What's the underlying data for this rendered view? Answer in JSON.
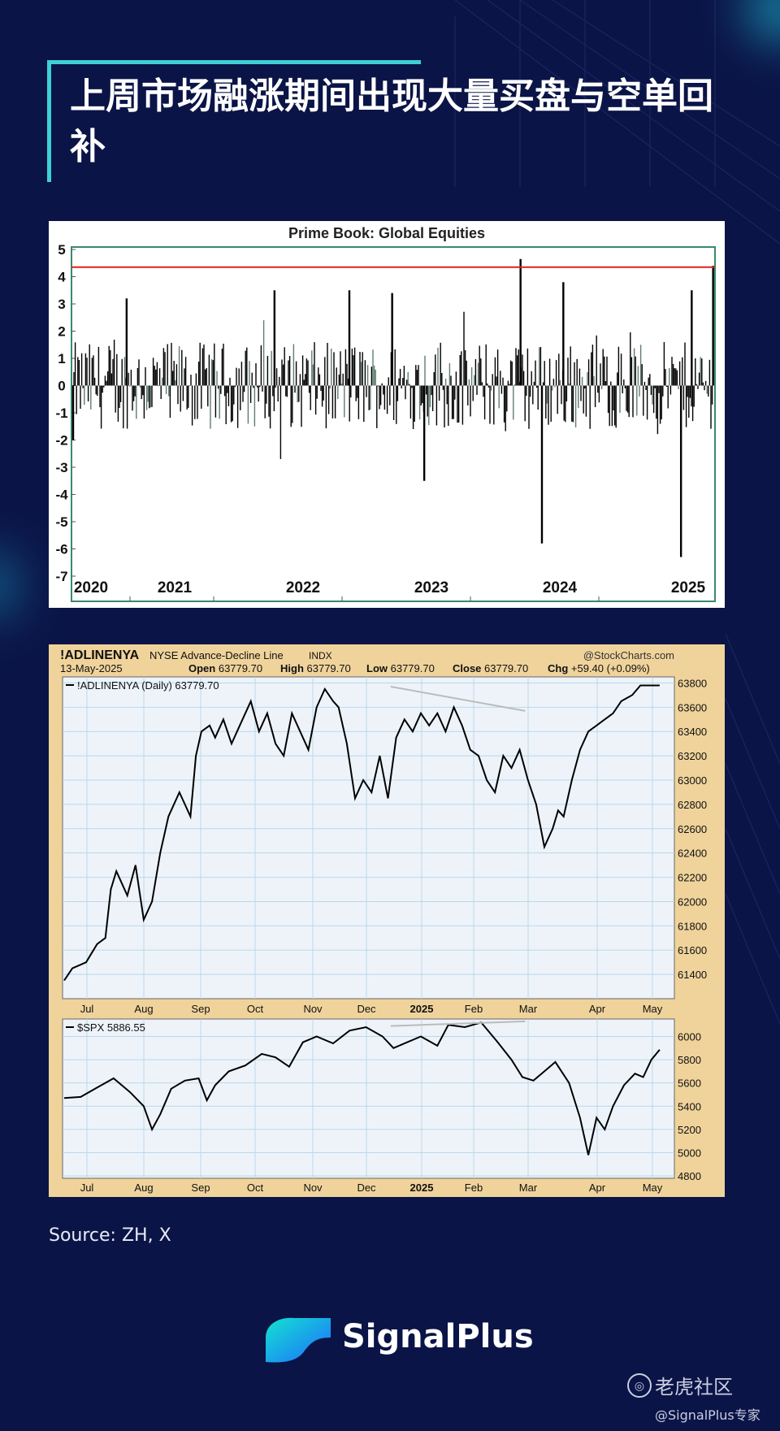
{
  "title": "上周市场融涨期间出现大量买盘与空单回补",
  "source": "Source: ZH, X",
  "brand": {
    "name": "SignalPlus",
    "accent": "#3fd0d4",
    "bg": "#0b1447"
  },
  "watermark": {
    "site": "老虎社区",
    "handle": "@SignalPlus专家"
  },
  "chart_data": [
    {
      "type": "bar",
      "title": "Prime Book: Global Equities",
      "x_ticks": [
        "2020",
        "2021",
        "2022",
        "2023",
        "2024",
        "2025"
      ],
      "y_ticks": [
        "5",
        "4",
        "3",
        "2",
        "1",
        "0",
        "-1",
        "-2",
        "-3",
        "-4",
        "-5",
        "-6",
        "-7"
      ],
      "ylim": [
        -7,
        5
      ],
      "reference_line": {
        "value": 4.35,
        "color": "#e0201b"
      },
      "notable_values": [
        {
          "x": "2020-01",
          "value": -2.0
        },
        {
          "x": "2020-06",
          "value": 3.2
        },
        {
          "x": "2021-12",
          "value": 3.5
        },
        {
          "x": "2022-07",
          "value": 3.5
        },
        {
          "x": "2022-11",
          "value": 3.4
        },
        {
          "x": "2023-02",
          "value": -3.5
        },
        {
          "x": "2023-11",
          "value": 4.65
        },
        {
          "x": "2024-01",
          "value": -5.8
        },
        {
          "x": "2024-03",
          "value": 3.8
        },
        {
          "x": "2025-02",
          "value": -6.3
        },
        {
          "x": "2025-03",
          "value": 3.5
        },
        {
          "x": "2025-05",
          "value": 4.4
        }
      ]
    },
    {
      "type": "line",
      "header": {
        "symbol": "!ADLINENYA",
        "name": "NYSE Advance-Decline Line",
        "exchange": "INDX",
        "credit": "@StockCharts.com",
        "date": "13-May-2025",
        "open_label": "Open",
        "open": "63779.70",
        "high_label": "High",
        "high": "63779.70",
        "low_label": "Low",
        "low": "63779.70",
        "close_label": "Close",
        "close": "63779.70",
        "chg_label": "Chg",
        "chg": "+59.40 (+0.09%)"
      },
      "legend": "!ADLINENYA (Daily) 63779.70",
      "x_ticks": [
        "Jul",
        "Aug",
        "Sep",
        "Oct",
        "Nov",
        "Dec",
        "2025",
        "Feb",
        "Mar",
        "Apr",
        "May"
      ],
      "y_ticks": [
        "63800",
        "63600",
        "63400",
        "63200",
        "63000",
        "62800",
        "62600",
        "62400",
        "62200",
        "62000",
        "61800",
        "61600",
        "61400"
      ],
      "ylim": [
        61200,
        63850
      ],
      "x_range": [
        0,
        11
      ],
      "series": [
        {
          "name": "!ADLINENYA",
          "x": [
            0,
            0.15,
            0.4,
            0.6,
            0.75,
            0.85,
            0.95,
            1.15,
            1.3,
            1.45,
            1.6,
            1.75,
            1.9,
            2.1,
            2.3,
            2.4,
            2.5,
            2.65,
            2.75,
            2.9,
            3.05,
            3.2,
            3.4,
            3.55,
            3.7,
            3.85,
            4.0,
            4.15,
            4.3,
            4.45,
            4.6,
            4.75,
            4.9,
            5.0,
            5.15,
            5.3,
            5.45,
            5.6,
            5.75,
            5.9,
            6.05,
            6.2,
            6.35,
            6.5,
            6.65,
            6.8,
            6.95,
            7.1,
            7.25,
            7.4,
            7.55,
            7.7,
            7.85,
            8.0,
            8.15,
            8.3,
            8.45,
            8.6,
            8.75,
            8.9,
            9.0,
            9.1,
            9.25,
            9.4,
            9.55,
            9.7,
            9.85,
            10.0,
            10.15,
            10.35,
            10.5,
            10.65,
            10.75,
            10.85
          ],
          "values": [
            61350,
            61450,
            61500,
            61650,
            61700,
            62100,
            62250,
            62050,
            62300,
            61850,
            62000,
            62400,
            62700,
            62900,
            62700,
            63200,
            63400,
            63450,
            63350,
            63500,
            63300,
            63450,
            63650,
            63400,
            63550,
            63300,
            63200,
            63550,
            63400,
            63250,
            63600,
            63750,
            63650,
            63600,
            63300,
            62850,
            63000,
            62900,
            63200,
            62850,
            63350,
            63500,
            63400,
            63550,
            63450,
            63550,
            63400,
            63600,
            63450,
            63250,
            63200,
            63000,
            62900,
            63200,
            63100,
            63250,
            63000,
            62800,
            62450,
            62600,
            62750,
            62700,
            63000,
            63250,
            63400,
            63450,
            63500,
            63550,
            63650,
            63700,
            63780,
            63779.7,
            63779.7,
            63779.7
          ]
        }
      ],
      "trendline": {
        "from": [
          5.95,
          63770
        ],
        "to": [
          8.4,
          63570
        ],
        "color": "#bbbbbb"
      }
    },
    {
      "type": "line",
      "legend": "$SPX 5886.55",
      "x_ticks": [
        "Jul",
        "Aug",
        "Sep",
        "Oct",
        "Nov",
        "Dec",
        "2025",
        "Feb",
        "Mar",
        "Apr",
        "May"
      ],
      "y_ticks": [
        "6000",
        "5800",
        "5600",
        "5400",
        "5200",
        "5000",
        "4800"
      ],
      "ylim": [
        4780,
        6150
      ],
      "x_range": [
        0,
        11
      ],
      "series": [
        {
          "name": "$SPX",
          "x": [
            0,
            0.3,
            0.6,
            0.9,
            1.2,
            1.45,
            1.6,
            1.75,
            1.95,
            2.2,
            2.45,
            2.6,
            2.75,
            3.0,
            3.3,
            3.6,
            3.85,
            4.1,
            4.35,
            4.6,
            4.9,
            5.2,
            5.5,
            5.8,
            6.0,
            6.25,
            6.5,
            6.8,
            7.0,
            7.3,
            7.6,
            7.9,
            8.15,
            8.35,
            8.55,
            8.75,
            8.95,
            9.2,
            9.4,
            9.55,
            9.7,
            9.85,
            10.0,
            10.2,
            10.4,
            10.55,
            10.7,
            10.85
          ],
          "values": [
            5470,
            5480,
            5560,
            5640,
            5520,
            5400,
            5200,
            5330,
            5550,
            5620,
            5640,
            5450,
            5580,
            5700,
            5750,
            5850,
            5820,
            5740,
            5950,
            6000,
            5940,
            6050,
            6080,
            6000,
            5900,
            5950,
            6000,
            5920,
            6100,
            6080,
            6120,
            5950,
            5800,
            5650,
            5620,
            5700,
            5780,
            5600,
            5300,
            4980,
            5300,
            5200,
            5400,
            5580,
            5680,
            5650,
            5800,
            5886.55
          ]
        }
      ],
      "trendline": {
        "from": [
          5.95,
          6090
        ],
        "to": [
          8.4,
          6130
        ],
        "color": "#bbbbbb"
      }
    }
  ]
}
